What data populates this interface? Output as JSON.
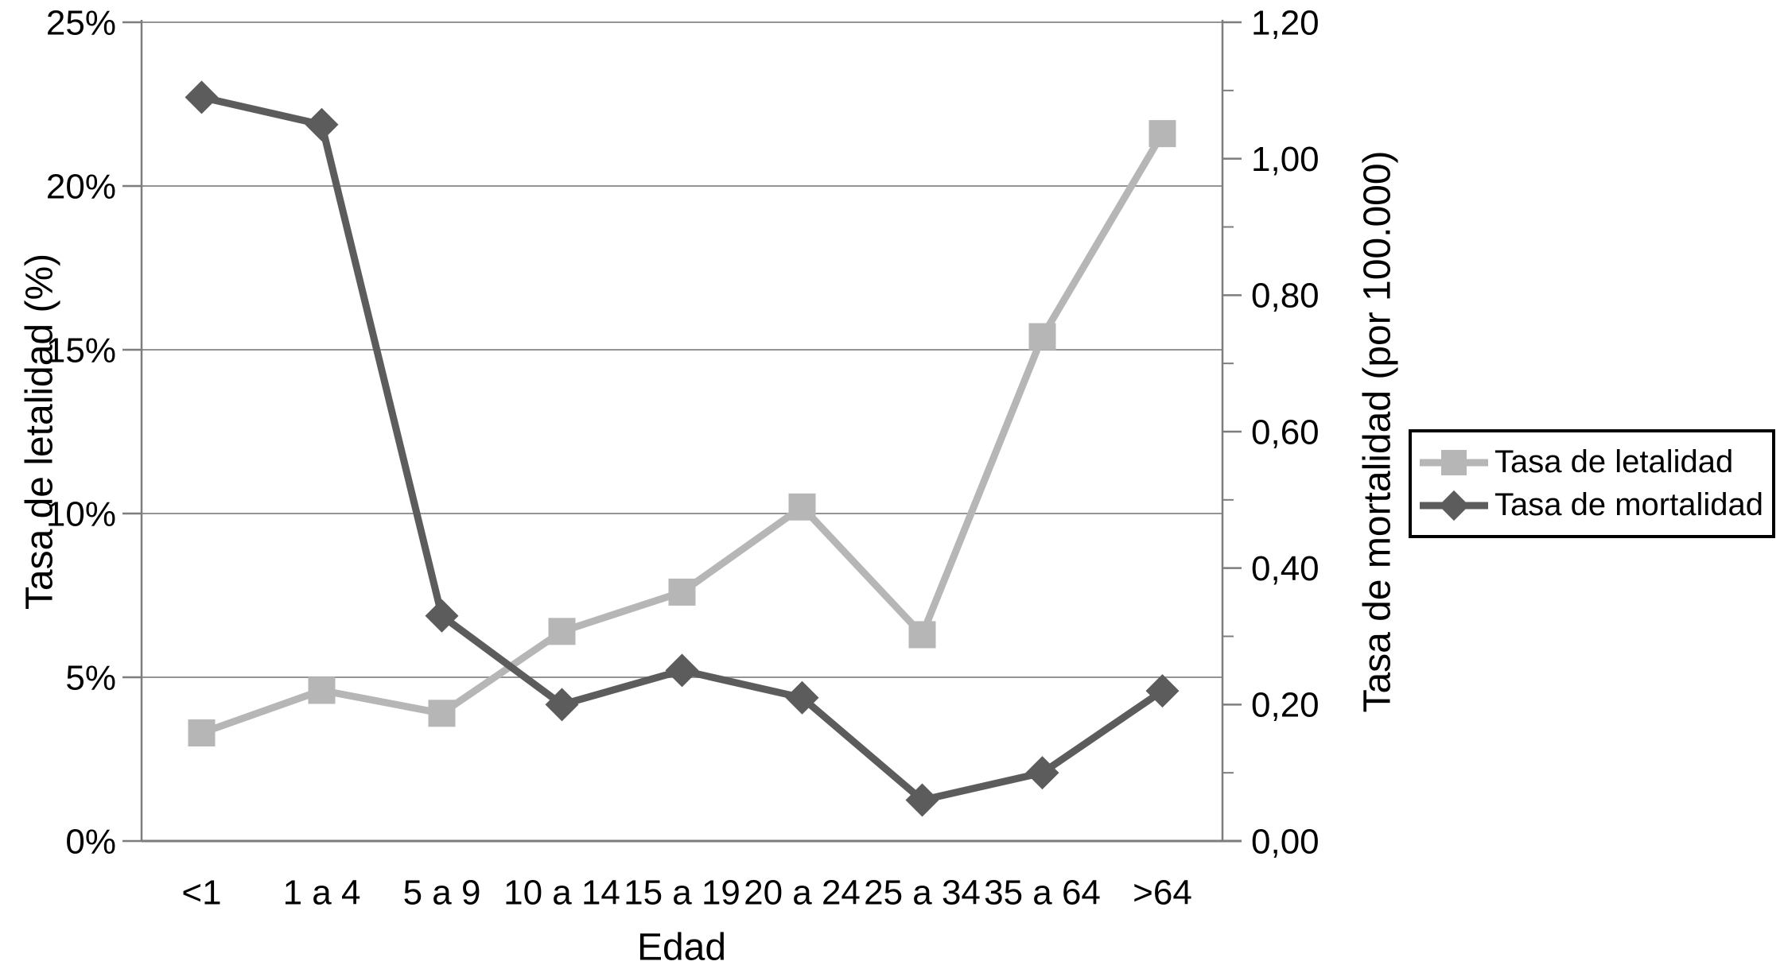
{
  "chart_data": {
    "type": "line",
    "title": "",
    "categories": [
      "<1",
      "1 a 4",
      "5 a 9",
      "10 a 14",
      "15 a 19",
      "20 a 24",
      "25 a 34",
      "35 a 64",
      ">64"
    ],
    "xlabel": "Edad",
    "series": [
      {
        "name": "Tasa de letalidad",
        "axis": "left",
        "marker": "square",
        "color": "#b6b6b6",
        "values": [
          3.3,
          4.6,
          3.9,
          6.4,
          7.6,
          10.2,
          6.3,
          15.4,
          21.6
        ]
      },
      {
        "name": "Tasa de mortalidad",
        "axis": "right",
        "marker": "diamond",
        "color": "#5c5c5c",
        "values": [
          1.09,
          1.05,
          0.33,
          0.2,
          0.25,
          0.21,
          0.06,
          0.1,
          0.22
        ]
      }
    ],
    "axis_left": {
      "label": "Tasa de letalidad (%)",
      "min": 0,
      "max": 25,
      "tick_step": 5,
      "tick_labels": [
        "0%",
        "5%",
        "10%",
        "15%",
        "20%",
        "25%"
      ]
    },
    "axis_right": {
      "label": "Tasa de mortalidad (por 100.000)",
      "min": 0,
      "max": 1.2,
      "tick_step": 0.2,
      "minor_tick_step": 0.1,
      "tick_labels": [
        "0,00",
        "0,20",
        "0,40",
        "0,60",
        "0,80",
        "1,00",
        "1,20"
      ]
    },
    "legend": {
      "position": "right",
      "entries": [
        "Tasa de letalidad",
        "Tasa de mortalidad"
      ]
    },
    "grid": "horizontal",
    "colors": {
      "grid": "#949494",
      "axis": "#7d7d7d",
      "text": "#000000",
      "background": "#ffffff"
    }
  }
}
